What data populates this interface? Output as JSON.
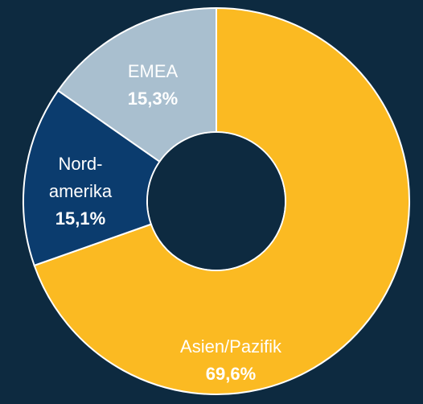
{
  "chart_data": {
    "type": "pie",
    "categories": [
      "Asien/Pazifik",
      "Nord-amerika",
      "EMEA"
    ],
    "values": [
      69.6,
      15.1,
      15.3
    ],
    "value_labels": [
      "69,6%",
      "15,1%",
      "15,3%"
    ],
    "colors": [
      "#fbba22",
      "#0b3c6e",
      "#a9bfcf"
    ]
  }
}
